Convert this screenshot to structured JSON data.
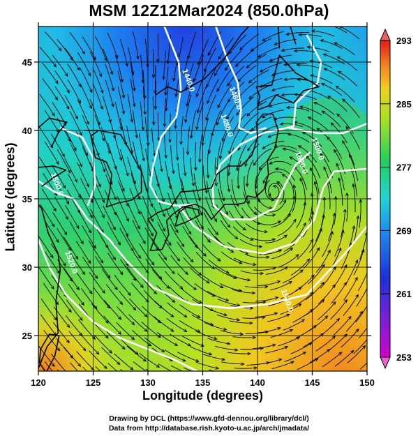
{
  "title": "MSM 12Z12Mar2024 (850.0hPa)",
  "x_axis": {
    "label": "Longitude (degrees)",
    "range": [
      120,
      150
    ],
    "ticks": [
      {
        "value": 120,
        "label": "120"
      },
      {
        "value": 125,
        "label": "125"
      },
      {
        "value": 130,
        "label": "130"
      },
      {
        "value": 135,
        "label": "135"
      },
      {
        "value": 140,
        "label": "140"
      },
      {
        "value": 145,
        "label": "145"
      },
      {
        "value": 150,
        "label": "150"
      }
    ]
  },
  "y_axis": {
    "label": "Latitude  (degrees)",
    "range": [
      22.4,
      47.6
    ],
    "ticks": [
      {
        "value": 25,
        "label": "25"
      },
      {
        "value": 30,
        "label": "30"
      },
      {
        "value": 35,
        "label": "35"
      },
      {
        "value": 40,
        "label": "40"
      },
      {
        "value": 45,
        "label": "45"
      }
    ]
  },
  "colorbar": {
    "min": 253,
    "max": 293,
    "labels": [
      {
        "value": 293,
        "label": "293"
      },
      {
        "value": 285,
        "label": "285"
      },
      {
        "value": 277,
        "label": "277"
      },
      {
        "value": 269,
        "label": "269"
      },
      {
        "value": 261,
        "label": "261"
      },
      {
        "value": 253,
        "label": "253"
      }
    ]
  },
  "contour_labels": [
    {
      "text": "1440.0",
      "lon": 133.5,
      "lat": 43.6
    },
    {
      "text": "1460.0",
      "lon": 137.8,
      "lat": 42.3
    },
    {
      "text": "1480.0",
      "lon": 137.0,
      "lat": 40.3
    },
    {
      "text": "1500.0",
      "lon": 145.3,
      "lat": 38.6
    },
    {
      "text": "1520.0",
      "lon": 143.8,
      "lat": 37.6
    },
    {
      "text": "1500.0",
      "lon": 121.5,
      "lat": 36.0
    },
    {
      "text": "1520.0",
      "lon": 122.8,
      "lat": 30.3
    },
    {
      "text": "1540.0",
      "lon": 142.5,
      "lat": 27.5
    }
  ],
  "credits": {
    "line1": "Drawing by DCL (https://www.gfd-dennou.org/library/dcl/)",
    "line2": "Data from http://database.rish.kyoto-u.ac.jp/arch/jmadata/"
  }
}
